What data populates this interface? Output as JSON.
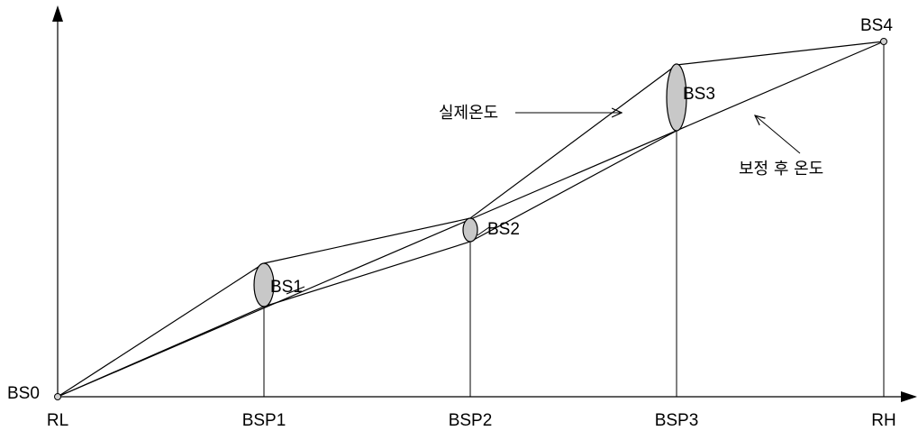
{
  "diagram": {
    "axis_labels": {
      "rl": "RL",
      "bsp1": "BSP1",
      "bsp2": "BSP2",
      "bsp3": "BSP3",
      "rh": "RH"
    },
    "point_labels": {
      "bs0": "BS0",
      "bs1": "BS1",
      "bs2": "BS2",
      "bs3": "BS3",
      "bs4": "BS4"
    },
    "annotations": {
      "actual_temp": "실제온도",
      "corrected_temp": "보정 후 온도"
    },
    "colors": {
      "line": "#000000",
      "ellipse_fill": "#c8c8c8",
      "background": "#ffffff"
    }
  }
}
